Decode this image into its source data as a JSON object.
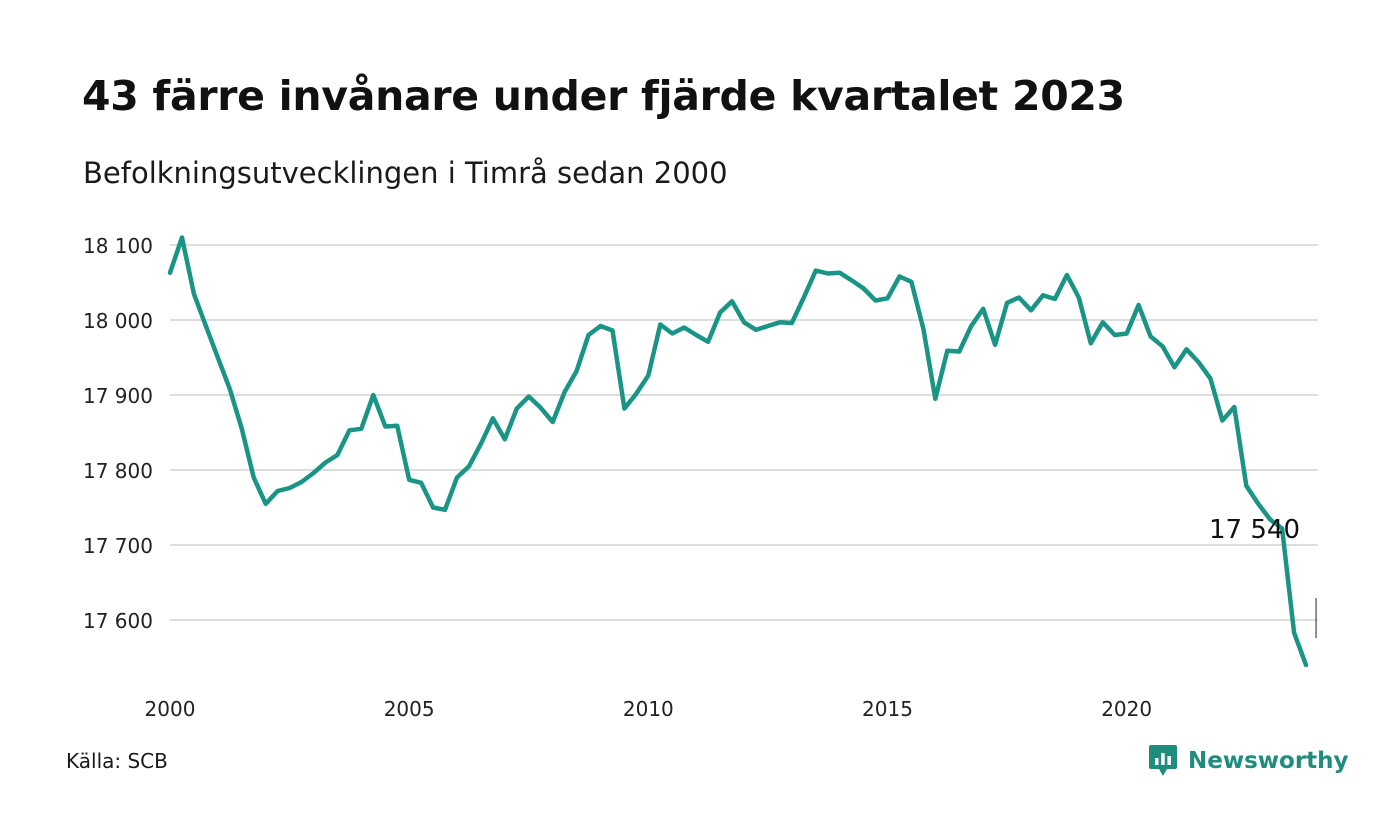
{
  "header": {
    "title": "43 färre invånare under fjärde kvartalet 2023",
    "subtitle": "Befolkningsutvecklingen i Timrå sedan 2000"
  },
  "footer": {
    "source": "Källa: SCB",
    "brand": "Newsworthy"
  },
  "colors": {
    "line": "#1a9485",
    "grid": "#dddddd",
    "brand": "#1f8c7e"
  },
  "icons": {
    "brand_logo": "chart-speech-bubble-icon"
  },
  "chart_data": {
    "type": "line",
    "title": "43 färre invånare under fjärde kvartalet 2023",
    "subtitle": "Befolkningsutvecklingen i Timrå sedan 2000",
    "xlabel": "",
    "ylabel": "",
    "grid": true,
    "legend": "none",
    "x_ticks": [
      2000,
      2005,
      2010,
      2015,
      2020
    ],
    "x_tick_labels": [
      "2000",
      "2005",
      "2010",
      "2015",
      "2020"
    ],
    "y_ticks": [
      17600,
      17700,
      17800,
      17900,
      18000,
      18100
    ],
    "y_tick_labels": [
      "17 600",
      "17 700",
      "17 800",
      "17 900",
      "18 000",
      "18 100"
    ],
    "xlim": [
      2000,
      2024
    ],
    "ylim": [
      17540,
      18110
    ],
    "annotation": {
      "label": "17 540",
      "x": 2023.75,
      "y": 17540
    },
    "series": [
      {
        "x": [
          2000.0,
          2000.25,
          2000.5,
          2000.75,
          2001.0,
          2001.25,
          2001.5,
          2001.75,
          2002.0,
          2002.25,
          2002.5,
          2002.75,
          2003.0,
          2003.25,
          2003.5,
          2003.75,
          2004.0,
          2004.25,
          2004.5,
          2004.75,
          2005.0,
          2005.25,
          2005.5,
          2005.75,
          2006.0,
          2006.25,
          2006.5,
          2006.75,
          2007.0,
          2007.25,
          2007.5,
          2007.75,
          2008.0,
          2008.25,
          2008.5,
          2008.75,
          2009.0,
          2009.25,
          2009.5,
          2009.75,
          2010.0,
          2010.25,
          2010.5,
          2010.75,
          2011.0,
          2011.25,
          2011.5,
          2011.75,
          2012.0,
          2012.25,
          2012.5,
          2012.75,
          2013.0,
          2013.25,
          2013.5,
          2013.75,
          2014.0,
          2014.25,
          2014.5,
          2014.75,
          2015.0,
          2015.25,
          2015.5,
          2015.75,
          2016.0,
          2016.25,
          2016.5,
          2016.75,
          2017.0,
          2017.25,
          2017.5,
          2017.75,
          2018.0,
          2018.25,
          2018.5,
          2018.75,
          2019.0,
          2019.25,
          2019.5,
          2019.75,
          2020.0,
          2020.25,
          2020.5,
          2020.75,
          2021.0,
          2021.25,
          2021.5,
          2021.75,
          2022.0,
          2022.25,
          2022.5,
          2022.75,
          2023.0,
          2023.25,
          2023.5,
          2023.75
        ],
        "values": [
          18063,
          18110,
          18035,
          17992,
          17950,
          17908,
          17855,
          17790,
          17755,
          17772,
          17776,
          17784,
          17796,
          17810,
          17820,
          17853,
          17855,
          17900,
          17858,
          17859,
          17787,
          17783,
          17750,
          17747,
          17790,
          17805,
          17835,
          17869,
          17841,
          17882,
          17898,
          17883,
          17864,
          17904,
          17932,
          17980,
          17992,
          17986,
          17882,
          17902,
          17926,
          17994,
          17982,
          17990,
          17980,
          17971,
          18010,
          18025,
          17997,
          17987,
          17992,
          17997,
          17996,
          18030,
          18066,
          18062,
          18063,
          18053,
          18042,
          18026,
          18029,
          18058,
          18051,
          17988,
          17895,
          17959,
          17958,
          17992,
          18015,
          17967,
          18023,
          18030,
          18013,
          18033,
          18028,
          18060,
          18030,
          17969,
          17997,
          17980,
          17982,
          18020,
          17978,
          17965,
          17937,
          17961,
          17944,
          17922,
          17866,
          17884,
          17779,
          17755,
          17734,
          17722,
          17583,
          17540
        ]
      }
    ]
  }
}
